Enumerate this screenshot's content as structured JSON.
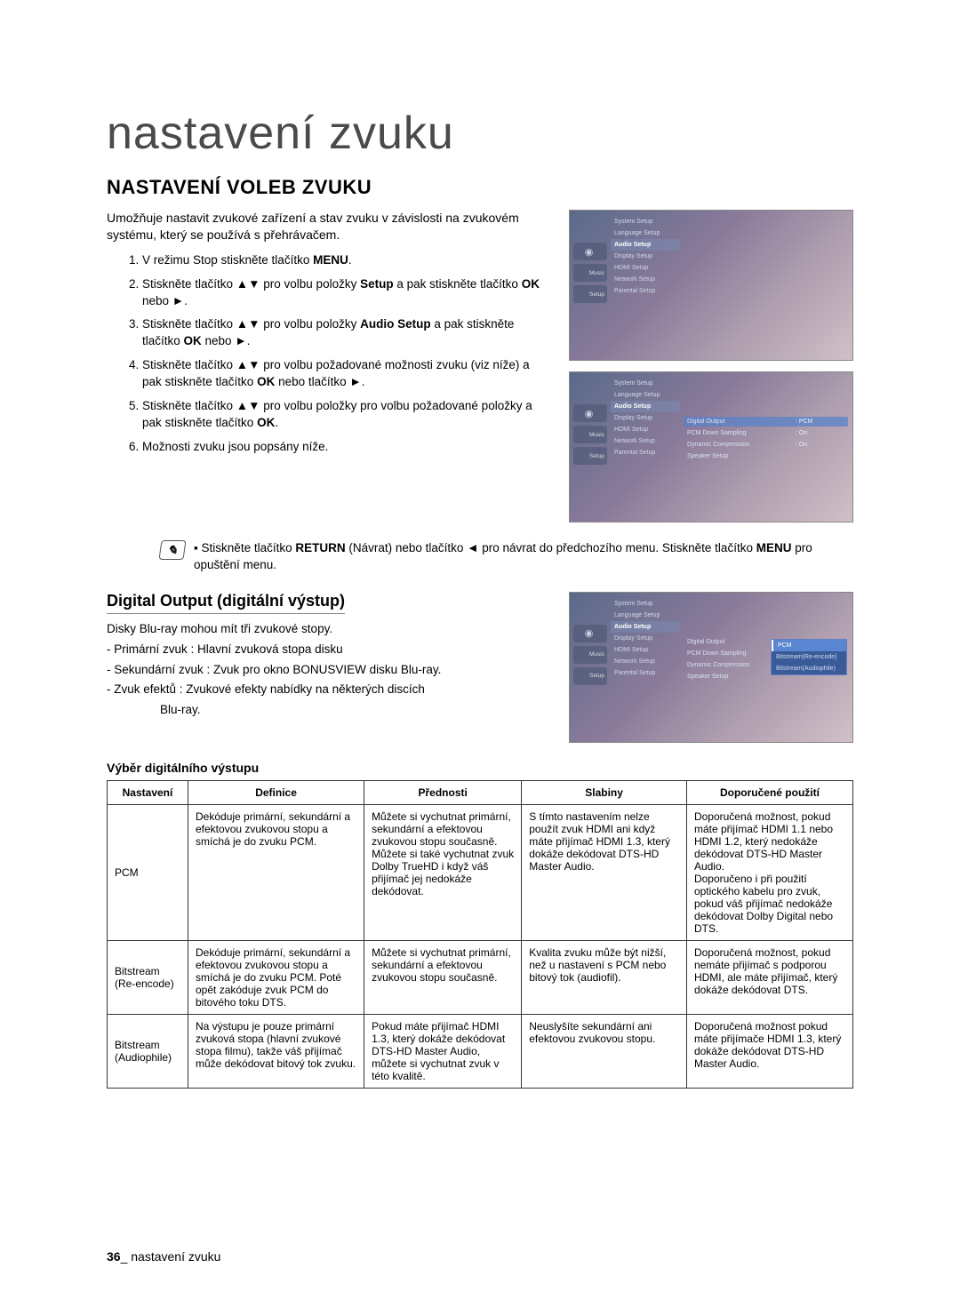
{
  "page_title": "nastavení zvuku",
  "section_heading": "NASTAVENÍ VOLEB ZVUKU",
  "intro": "Umožňuje nastavit zvukové zařízení a stav zvuku v závislosti na zvukovém systému, který se používá s přehrávačem.",
  "steps": {
    "s1a": "V režimu Stop stiskněte tlačítko ",
    "s1b": "MENU",
    "s1c": ".",
    "s2a": "Stiskněte tlačítko ▲▼ pro volbu položky ",
    "s2b": "Setup",
    "s2c": " a pak stiskněte tlačítko ",
    "s2d": "OK",
    "s2e": " nebo ►.",
    "s3a": "Stiskněte tlačítko ▲▼ pro volbu položky ",
    "s3b": "Audio Setup",
    "s3c": " a pak stiskněte tlačítko ",
    "s3d": "OK",
    "s3e": " nebo ►.",
    "s4a": "Stiskněte tlačítko ▲▼ pro volbu požadované možnosti zvuku (viz níže) a pak stiskněte tlačítko ",
    "s4b": "OK",
    "s4c": " nebo tlačítko ►.",
    "s5a": "Stiskněte tlačítko ▲▼ pro volbu položky pro volbu požadované položky a pak stiskněte tlačítko ",
    "s5b": "OK",
    "s5c": ".",
    "s6": "Možnosti zvuku jsou popsány níže."
  },
  "note": {
    "bullet": "▪",
    "a": " Stiskněte tlačítko ",
    "b": "RETURN",
    "c": " (Návrat) nebo tlačítko ◄ pro návrat do předchozího menu. Stiskněte tlačítko ",
    "d": "MENU",
    "e": " pro opuštění menu."
  },
  "sub_heading": "Digital Output (digitální výstup)",
  "do_intro": "Disky Blu-ray mohou mít tři zvukové stopy.",
  "do_b1": "- Primární zvuk : Hlavní zvuková stopa disku",
  "do_b2": "- Sekundární zvuk : Zvuk pro okno BONUSVIEW disku Blu-ray.",
  "do_b3a": "- Zvuk efektů : Zvukové efekty nabídky na některých discích",
  "do_b3b": "Blu-ray.",
  "table_label": "Výběr digitálního výstupu",
  "table": {
    "headers": [
      "Nastavení",
      "Definice",
      "Přednosti",
      "Slabiny",
      "Doporučené použití"
    ],
    "rows": [
      {
        "c0": "PCM",
        "c1": "Dekóduje primární, sekundární a efektovou zvukovou stopu a smíchá je do zvuku PCM.",
        "c2": "Můžete si vychutnat primární, sekundární a efektovou zvukovou stopu současně.\nMůžete si také vychutnat zvuk Dolby TrueHD i když váš přijímač jej nedokáže dekódovat.",
        "c3": "S tímto nastavením nelze použít zvuk HDMI ani když máte přijímač HDMI 1.3, který dokáže dekódovat DTS-HD Master Audio.",
        "c4": "Doporučená možnost, pokud máte přijímač HDMI 1.1 nebo HDMI 1.2, který nedokáže dekódovat DTS-HD Master Audio.\nDoporučeno i při použití optického kabelu pro zvuk, pokud váš přijímač nedokáže dekódovat Dolby Digital nebo DTS."
      },
      {
        "c0": "Bitstream (Re-encode)",
        "c1": "Dekóduje primární, sekundární a efektovou zvukovou stopu a smíchá je do zvuku PCM. Poté opět zakóduje zvuk PCM do bitového toku DTS.",
        "c2": "Můžete si vychutnat primární, sekundární a efektovou zvukovou stopu současně.",
        "c3": "Kvalita zvuku může být nižší, než u nastavení s PCM nebo bitový tok (audiofil).",
        "c4": "Doporučená možnost, pokud nemáte přijímač s podporou HDMI, ale máte přijímač, který dokáže dekódovat DTS."
      },
      {
        "c0": "Bitstream (Audiophile)",
        "c1": "Na výstupu je pouze primární zvuková stopa (hlavní zvukové stopa filmu), takže váš přijímač může dekódovat bitový tok zvuku.",
        "c2": "Pokud máte přijímač HDMI 1.3, který dokáže dekódovat DTS-HD Master Audio, můžete si vychutnat zvuk v této kvalitě.",
        "c3": "Neuslyšíte sekundární ani efektovou zvukovou stopu.",
        "c4": "Doporučená možnost pokud máte přijímače HDMI 1.3, který dokáže dekódovat DTS-HD Master Audio."
      }
    ]
  },
  "osd": {
    "tab_music": "Music",
    "tab_setup": "Setup",
    "menu": {
      "system": "System Setup",
      "language": "Language Setup",
      "audio": "Audio Setup",
      "display": "Display Setup",
      "hdmi": "HDMI Setup",
      "network": "Network Setup",
      "parental": "Parental Setup"
    },
    "right": {
      "digital_output": "Digital Output",
      "pcm": "PCM",
      "pcm_down": "PCM Down Sampling",
      "on": "On",
      "dynamic": "Dynamic Compression",
      "speaker": "Speaker Setup"
    },
    "popup": {
      "pcm": "PCM",
      "reenc": "Bitstream(Re-encode)",
      "audioph": "Bitstream(Audiophile)"
    }
  },
  "footer": {
    "page": "36",
    "sep": "_ ",
    "label": "nastavení zvuku"
  }
}
